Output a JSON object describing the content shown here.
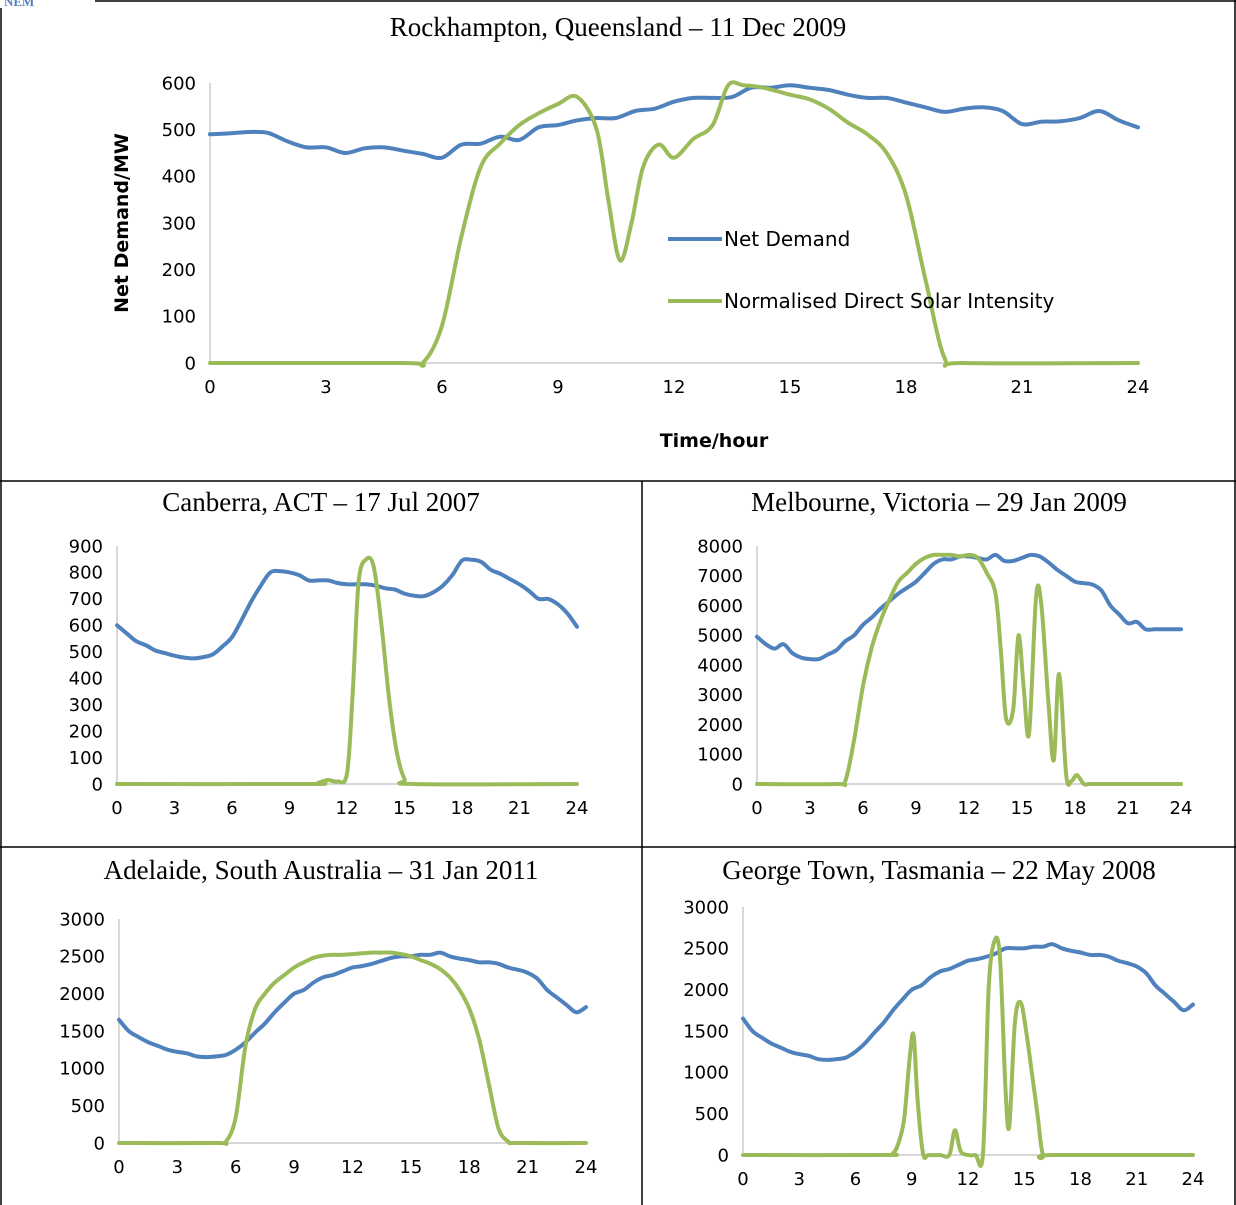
{
  "header_text": "NEM",
  "colors": {
    "demand": "#4f81bd",
    "solar": "#9bbb59",
    "axis": "#bfbfbf",
    "border": "#000000"
  },
  "chart_data": [
    {
      "type": "line",
      "title": "Rockhampton, Queensland – 11 Dec 2009",
      "xlabel": "Time/hour",
      "ylabel": "Net Demand/MW",
      "xlim": [
        0,
        24
      ],
      "ylim": [
        0,
        600
      ],
      "xticks": [
        0,
        3,
        6,
        9,
        12,
        15,
        18,
        21,
        24
      ],
      "yticks": [
        0,
        100,
        200,
        300,
        400,
        500,
        600
      ],
      "legend": "center",
      "legend_entries": [
        "Net Demand",
        "Normalised Direct Solar Intensity"
      ],
      "series": [
        {
          "name": "Net Demand",
          "x": [
            0,
            0.5,
            1,
            1.5,
            2,
            2.5,
            3,
            3.5,
            4,
            4.5,
            5,
            5.5,
            6,
            6.5,
            7,
            7.5,
            8,
            8.5,
            9,
            9.5,
            10,
            10.5,
            11,
            11.5,
            12,
            12.5,
            13,
            13.5,
            14,
            14.5,
            15,
            15.5,
            16,
            16.5,
            17,
            17.5,
            18,
            18.5,
            19,
            19.5,
            20,
            20.5,
            21,
            21.5,
            22,
            22.5,
            23,
            23.5,
            24
          ],
          "y": [
            490,
            492,
            495,
            493,
            475,
            462,
            462,
            450,
            460,
            462,
            455,
            448,
            440,
            468,
            470,
            485,
            478,
            505,
            510,
            520,
            525,
            525,
            540,
            545,
            560,
            568,
            568,
            570,
            590,
            590,
            595,
            590,
            585,
            575,
            568,
            568,
            558,
            548,
            538,
            545,
            548,
            540,
            512,
            517,
            518,
            525,
            540,
            520,
            505
          ]
        },
        {
          "name": "Normalised Direct Solar Intensity",
          "x": [
            0,
            5,
            5.5,
            6,
            6.5,
            7,
            7.5,
            8,
            8.5,
            9,
            9.5,
            10,
            10.3,
            10.6,
            10.9,
            11.2,
            11.6,
            12,
            12.5,
            13,
            13.4,
            13.8,
            14.3,
            15,
            15.5,
            16,
            16.5,
            17,
            17.5,
            18,
            18.5,
            19,
            19.5,
            24
          ],
          "y": [
            0,
            0,
            0,
            80,
            270,
            420,
            470,
            510,
            535,
            555,
            570,
            500,
            350,
            220,
            300,
            420,
            468,
            440,
            480,
            510,
            595,
            595,
            590,
            575,
            565,
            545,
            515,
            490,
            450,
            360,
            180,
            10,
            0,
            0
          ]
        }
      ]
    },
    {
      "type": "line",
      "title": "Canberra, ACT – 17 Jul 2007",
      "xlim": [
        0,
        24
      ],
      "ylim": [
        0,
        900
      ],
      "xticks": [
        0,
        3,
        6,
        9,
        12,
        15,
        18,
        21,
        24
      ],
      "yticks": [
        0,
        100,
        200,
        300,
        400,
        500,
        600,
        700,
        800,
        900
      ],
      "series": [
        {
          "name": "Net Demand",
          "x": [
            0,
            0.5,
            1,
            1.5,
            2,
            2.5,
            3,
            3.5,
            4,
            4.5,
            5,
            5.5,
            6,
            6.5,
            7,
            7.5,
            8,
            8.5,
            9,
            9.5,
            10,
            10.5,
            11,
            11.5,
            12,
            12.5,
            13,
            13.5,
            14,
            14.5,
            15,
            15.5,
            16,
            16.5,
            17,
            17.5,
            18,
            18.5,
            19,
            19.5,
            20,
            20.5,
            21,
            21.5,
            22,
            22.5,
            23,
            23.5,
            24
          ],
          "y": [
            600,
            570,
            540,
            525,
            505,
            495,
            485,
            478,
            475,
            480,
            490,
            520,
            555,
            620,
            690,
            750,
            800,
            805,
            800,
            790,
            770,
            770,
            770,
            760,
            755,
            755,
            755,
            750,
            740,
            735,
            720,
            712,
            710,
            725,
            750,
            790,
            845,
            848,
            840,
            810,
            795,
            775,
            755,
            730,
            700,
            700,
            680,
            645,
            595
          ]
        },
        {
          "name": "Normalised Direct Solar Intensity",
          "x": [
            0,
            10,
            10.5,
            11,
            11.5,
            12,
            12.3,
            12.6,
            13,
            13.4,
            13.8,
            14.2,
            14.6,
            15,
            15.5,
            24
          ],
          "y": [
            0,
            0,
            5,
            15,
            10,
            40,
            350,
            760,
            850,
            820,
            600,
            320,
            120,
            20,
            0,
            0
          ]
        }
      ]
    },
    {
      "type": "line",
      "title": "Melbourne, Victoria – 29 Jan 2009",
      "xlim": [
        0,
        24
      ],
      "ylim": [
        0,
        8000
      ],
      "xticks": [
        0,
        3,
        6,
        9,
        12,
        15,
        18,
        21,
        24
      ],
      "yticks": [
        0,
        1000,
        2000,
        3000,
        4000,
        5000,
        6000,
        7000,
        8000
      ],
      "series": [
        {
          "name": "Net Demand",
          "x": [
            0,
            0.5,
            1,
            1.5,
            2,
            2.5,
            3,
            3.5,
            4,
            4.5,
            5,
            5.5,
            6,
            6.5,
            7,
            7.5,
            8,
            8.5,
            9,
            9.5,
            10,
            10.5,
            11,
            11.5,
            12,
            12.5,
            13,
            13.5,
            14,
            14.5,
            15,
            15.5,
            16,
            16.5,
            17,
            17.5,
            18,
            18.5,
            19,
            19.5,
            20,
            20.5,
            21,
            21.5,
            22,
            22.5,
            23,
            23.5,
            24
          ],
          "y": [
            4950,
            4700,
            4550,
            4700,
            4400,
            4250,
            4200,
            4200,
            4350,
            4500,
            4800,
            5000,
            5350,
            5600,
            5900,
            6150,
            6400,
            6600,
            6800,
            7100,
            7400,
            7550,
            7550,
            7650,
            7650,
            7600,
            7550,
            7700,
            7500,
            7500,
            7600,
            7700,
            7650,
            7450,
            7200,
            7000,
            6800,
            6750,
            6700,
            6500,
            6000,
            5700,
            5400,
            5450,
            5200,
            5200,
            5200,
            5200,
            5200
          ]
        },
        {
          "name": "Normalised Direct Solar Intensity",
          "x": [
            0,
            4.5,
            5,
            5.5,
            6,
            6.5,
            7,
            7.5,
            8,
            8.5,
            9,
            9.5,
            10,
            10.5,
            11,
            11.5,
            12,
            12.5,
            13,
            13.5,
            13.8,
            14.1,
            14.5,
            14.8,
            15.1,
            15.4,
            15.8,
            16.1,
            16.5,
            16.8,
            17.1,
            17.5,
            17.8,
            18.1,
            18.5,
            18.8,
            19.2,
            19.6,
            20,
            24
          ],
          "y": [
            0,
            0,
            100,
            1500,
            3300,
            4600,
            5500,
            6200,
            6800,
            7100,
            7400,
            7600,
            7700,
            7700,
            7700,
            7650,
            7700,
            7600,
            7100,
            6400,
            4500,
            2200,
            2500,
            5000,
            3200,
            1700,
            6300,
            6000,
            2700,
            800,
            3700,
            300,
            100,
            300,
            0,
            0,
            0,
            0,
            0,
            0
          ]
        }
      ]
    },
    {
      "type": "line",
      "title": "Adelaide, South Australia – 31 Jan 2011",
      "xlim": [
        0,
        24
      ],
      "ylim": [
        0,
        3000
      ],
      "xticks": [
        0,
        3,
        6,
        9,
        12,
        15,
        18,
        21,
        24
      ],
      "yticks": [
        0,
        500,
        1000,
        1500,
        2000,
        2500,
        3000
      ],
      "series": [
        {
          "name": "Net Demand",
          "x": [
            0,
            0.5,
            1,
            1.5,
            2,
            2.5,
            3,
            3.5,
            4,
            4.5,
            5,
            5.5,
            6,
            6.5,
            7,
            7.5,
            8,
            8.5,
            9,
            9.5,
            10,
            10.5,
            11,
            11.5,
            12,
            12.5,
            13,
            13.5,
            14,
            14.5,
            15,
            15.5,
            16,
            16.5,
            17,
            17.5,
            18,
            18.5,
            19,
            19.5,
            20,
            20.5,
            21,
            21.5,
            22,
            22.5,
            23,
            23.5,
            24
          ],
          "y": [
            1650,
            1500,
            1420,
            1350,
            1300,
            1250,
            1220,
            1200,
            1160,
            1150,
            1160,
            1180,
            1250,
            1350,
            1480,
            1600,
            1750,
            1880,
            2000,
            2050,
            2150,
            2220,
            2250,
            2300,
            2350,
            2370,
            2400,
            2440,
            2480,
            2500,
            2500,
            2520,
            2520,
            2550,
            2500,
            2470,
            2450,
            2420,
            2420,
            2400,
            2350,
            2320,
            2280,
            2200,
            2050,
            1950,
            1850,
            1750,
            1820
          ]
        },
        {
          "name": "Normalised Direct Solar Intensity",
          "x": [
            0,
            5,
            5.5,
            6,
            6.5,
            7,
            7.5,
            8,
            8.5,
            9,
            9.5,
            10,
            10.5,
            11,
            11.5,
            12,
            12.5,
            13,
            13.5,
            14,
            14.5,
            15,
            15.5,
            16,
            16.5,
            17,
            17.5,
            18,
            18.5,
            19,
            19.5,
            20,
            20.5,
            24
          ],
          "y": [
            0,
            0,
            20,
            350,
            1300,
            1800,
            2000,
            2150,
            2250,
            2350,
            2420,
            2480,
            2510,
            2520,
            2520,
            2530,
            2540,
            2550,
            2550,
            2550,
            2530,
            2500,
            2450,
            2400,
            2330,
            2220,
            2050,
            1800,
            1400,
            800,
            200,
            20,
            0,
            0
          ]
        }
      ]
    },
    {
      "type": "line",
      "title": "George Town, Tasmania – 22 May 2008",
      "xlim": [
        0,
        24
      ],
      "ylim": [
        0,
        3000
      ],
      "xticks": [
        0,
        3,
        6,
        9,
        12,
        15,
        18,
        21,
        24
      ],
      "yticks": [
        0,
        500,
        1000,
        1500,
        2000,
        2500,
        3000
      ],
      "series": [
        {
          "name": "Net Demand",
          "x": [
            0,
            0.5,
            1,
            1.5,
            2,
            2.5,
            3,
            3.5,
            4,
            4.5,
            5,
            5.5,
            6,
            6.5,
            7,
            7.5,
            8,
            8.5,
            9,
            9.5,
            10,
            10.5,
            11,
            11.5,
            12,
            12.5,
            13,
            13.5,
            14,
            14.5,
            15,
            15.5,
            16,
            16.5,
            17,
            17.5,
            18,
            18.5,
            19,
            19.5,
            20,
            20.5,
            21,
            21.5,
            22,
            22.5,
            23,
            23.5,
            24
          ],
          "y": [
            1650,
            1500,
            1420,
            1350,
            1300,
            1250,
            1220,
            1200,
            1160,
            1150,
            1160,
            1180,
            1250,
            1350,
            1480,
            1600,
            1750,
            1880,
            2000,
            2050,
            2150,
            2220,
            2250,
            2300,
            2350,
            2370,
            2400,
            2440,
            2500,
            2500,
            2500,
            2520,
            2520,
            2550,
            2500,
            2470,
            2450,
            2420,
            2420,
            2400,
            2350,
            2320,
            2280,
            2200,
            2050,
            1950,
            1850,
            1750,
            1820
          ]
        },
        {
          "name": "Normalised Direct Solar Intensity",
          "x": [
            0,
            7.5,
            8,
            8.3,
            8.6,
            8.9,
            9.1,
            9.3,
            9.6,
            9.9,
            10.5,
            11,
            11.3,
            11.6,
            12,
            12.4,
            12.8,
            13.1,
            13.4,
            13.7,
            14,
            14.2,
            14.5,
            14.8,
            15.1,
            15.4,
            15.7,
            16,
            16.5,
            24
          ],
          "y": [
            0,
            0,
            20,
            150,
            450,
            1200,
            1450,
            700,
            20,
            0,
            0,
            0,
            300,
            50,
            0,
            0,
            20,
            2000,
            2580,
            2400,
            800,
            350,
            1600,
            1850,
            1500,
            1000,
            500,
            0,
            0,
            0
          ]
        }
      ]
    }
  ]
}
